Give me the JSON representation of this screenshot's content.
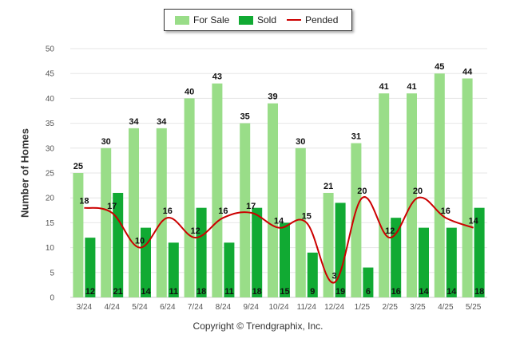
{
  "chart_data": {
    "type": "bar",
    "categories": [
      "3/24",
      "4/24",
      "5/24",
      "6/24",
      "7/24",
      "8/24",
      "9/24",
      "10/24",
      "11/24",
      "12/24",
      "1/25",
      "2/25",
      "3/25",
      "4/25",
      "5/25"
    ],
    "series": [
      {
        "name": "For Sale",
        "type": "bar",
        "color": "#99dd88",
        "values": [
          25,
          30,
          34,
          34,
          40,
          43,
          35,
          39,
          30,
          21,
          31,
          41,
          41,
          45,
          44
        ]
      },
      {
        "name": "Sold",
        "type": "bar",
        "color": "#11aa33",
        "values": [
          12,
          21,
          14,
          11,
          18,
          11,
          18,
          15,
          9,
          19,
          6,
          16,
          14,
          14,
          18
        ]
      },
      {
        "name": "Pended",
        "type": "line",
        "color": "#cc0000",
        "values": [
          18,
          17,
          10,
          16,
          12,
          16,
          17,
          14,
          15,
          3,
          20,
          12,
          20,
          16,
          14
        ]
      }
    ],
    "ylabel": "Number of Homes",
    "xlabel": "",
    "ylim": [
      0,
      50
    ],
    "yticks": [
      0,
      5,
      10,
      15,
      20,
      25,
      30,
      35,
      40,
      45,
      50
    ],
    "grid": true,
    "legend": "top-center"
  },
  "legend": [
    {
      "label": "For Sale",
      "color": "#99dd88",
      "kind": "bar"
    },
    {
      "label": "Sold",
      "color": "#11aa33",
      "kind": "bar"
    },
    {
      "label": "Pended",
      "color": "#cc0000",
      "kind": "line"
    }
  ],
  "footer": {
    "copyright": "Copyright © Trendgraphix, Inc."
  }
}
